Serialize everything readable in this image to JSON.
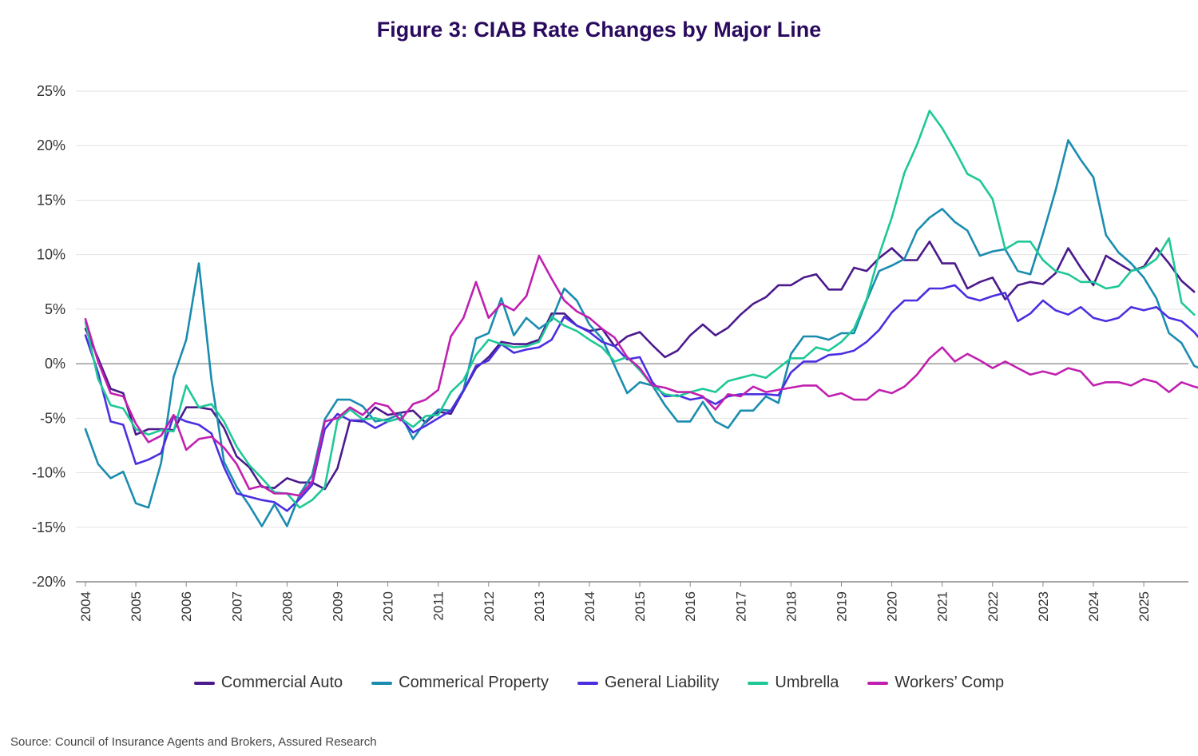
{
  "title": "Figure 3: CIAB Rate Changes by Major Line",
  "source": "Source: Council of Insurance Agents and Brokers, Assured Research",
  "chart_data": {
    "type": "line",
    "title": "Figure 3: CIAB Rate Changes by Major Line",
    "xlabel": "",
    "ylabel": "",
    "ylim": [
      -20,
      25
    ],
    "y_ticks": [
      "25%",
      "20%",
      "15%",
      "10%",
      "5%",
      "0%",
      "-5%",
      "-10%",
      "-15%",
      "-20%"
    ],
    "x_ticks": [
      "2004",
      "2005",
      "2006",
      "2007",
      "2008",
      "2009",
      "2010",
      "2011",
      "2012",
      "2013",
      "2014",
      "2015",
      "2016",
      "2017",
      "2018",
      "2019",
      "2020",
      "2021",
      "2022",
      "2023",
      "2024",
      "2025"
    ],
    "grid": "horizontal",
    "legend": "bottom",
    "x_start": 2004.0,
    "x_step": 0.25,
    "series": [
      {
        "name": "Commercial Auto",
        "color": "#4b1a8c",
        "values": [
          3.2,
          0.5,
          -2.3,
          -2.7,
          -6.5,
          -6.0,
          -6.0,
          -6.1,
          -4.0,
          -4.0,
          -4.2,
          -5.9,
          -8.5,
          -9.5,
          -11.3,
          -11.4,
          -10.5,
          -10.9,
          -10.9,
          -11.5,
          -9.6,
          -5.2,
          -5.3,
          -4.0,
          -4.7,
          -4.5,
          -4.3,
          -5.4,
          -4.4,
          -4.6,
          -2.5,
          -0.4,
          0.6,
          2.0,
          1.8,
          1.8,
          2.2,
          4.6,
          4.6,
          3.5,
          3.0,
          3.2,
          1.6,
          2.5,
          2.9,
          1.7,
          0.6,
          1.2,
          2.6,
          3.6,
          2.6,
          3.3,
          4.5,
          5.5,
          6.1,
          7.2,
          7.2,
          7.9,
          8.2,
          6.8,
          6.8,
          8.8,
          8.5,
          9.7,
          10.6,
          9.5,
          9.5,
          11.2,
          9.2,
          9.2,
          6.9,
          7.5,
          7.9,
          5.9,
          7.2,
          7.5,
          7.3,
          8.3,
          10.6,
          8.8,
          7.2,
          9.9,
          9.2,
          8.5,
          8.9,
          10.6,
          9.2,
          7.6,
          6.6
        ]
      },
      {
        "name": "Commerical Property",
        "color": "#1a8cb0",
        "values": [
          -6.0,
          -9.2,
          -10.5,
          -9.9,
          -12.8,
          -13.2,
          -9.1,
          -1.2,
          2.2,
          9.2,
          -1.5,
          -9.0,
          -11.3,
          -13.0,
          -14.9,
          -12.9,
          -14.9,
          -12.0,
          -10.2,
          -5.1,
          -3.3,
          -3.3,
          -3.9,
          -5.3,
          -5.1,
          -4.6,
          -6.9,
          -5.3,
          -4.2,
          -4.3,
          -2.4,
          2.3,
          2.8,
          6.0,
          2.6,
          4.2,
          3.2,
          4.0,
          6.9,
          5.8,
          3.6,
          2.3,
          -0.2,
          -2.7,
          -1.7,
          -2.0,
          -3.8,
          -5.3,
          -5.3,
          -3.5,
          -5.3,
          -5.9,
          -4.3,
          -4.3,
          -3.0,
          -3.6,
          0.9,
          2.5,
          2.5,
          2.2,
          2.8,
          2.8,
          5.8,
          8.5,
          9.0,
          9.6,
          12.2,
          13.4,
          14.2,
          13.0,
          12.2,
          9.9,
          10.3,
          10.5,
          8.5,
          8.2,
          11.9,
          15.9,
          20.5,
          18.7,
          17.1,
          11.8,
          10.2,
          9.2,
          7.9,
          6.0,
          2.8,
          1.9,
          -0.2,
          -0.7
        ]
      },
      {
        "name": "General Liability",
        "color": "#4a2fe0",
        "values": [
          2.6,
          -0.8,
          -5.3,
          -5.6,
          -9.2,
          -8.8,
          -8.2,
          -4.8,
          -5.3,
          -5.6,
          -6.4,
          -9.5,
          -11.9,
          -12.2,
          -12.5,
          -12.7,
          -13.5,
          -12.4,
          -11.1,
          -6.0,
          -4.6,
          -5.2,
          -5.2,
          -5.9,
          -5.3,
          -5.0,
          -6.3,
          -5.7,
          -5.0,
          -4.3,
          -2.5,
          -0.2,
          0.3,
          1.8,
          1.0,
          1.3,
          1.5,
          2.2,
          4.3,
          3.5,
          2.9,
          2.0,
          1.6,
          0.4,
          0.6,
          -1.7,
          -3.0,
          -2.9,
          -3.3,
          -3.1,
          -3.7,
          -3.0,
          -2.8,
          -2.8,
          -2.8,
          -2.9,
          -0.8,
          0.2,
          0.2,
          0.8,
          0.9,
          1.2,
          2.0,
          3.1,
          4.7,
          5.8,
          5.8,
          6.9,
          6.9,
          7.2,
          6.1,
          5.8,
          6.2,
          6.5,
          3.9,
          4.6,
          5.8,
          4.9,
          4.5,
          5.2,
          4.2,
          3.9,
          4.2,
          5.2,
          4.9,
          5.2,
          4.2,
          3.9,
          2.9,
          1.5
        ]
      },
      {
        "name": "Umbrella",
        "color": "#1ec896",
        "values": [
          3.8,
          -1.4,
          -3.8,
          -4.1,
          -6.0,
          -6.5,
          -6.1,
          -6.2,
          -2.0,
          -4.0,
          -3.7,
          -5.3,
          -7.6,
          -9.3,
          -10.5,
          -11.8,
          -11.9,
          -13.2,
          -12.5,
          -11.3,
          -5.2,
          -4.2,
          -5.1,
          -5.0,
          -5.3,
          -5.0,
          -5.8,
          -4.8,
          -4.7,
          -2.6,
          -1.5,
          0.8,
          2.2,
          1.8,
          1.5,
          1.6,
          2.0,
          4.3,
          3.5,
          3.0,
          2.2,
          1.5,
          0.2,
          0.6,
          -0.6,
          -2.0,
          -2.8,
          -3.0,
          -2.6,
          -2.3,
          -2.6,
          -1.6,
          -1.3,
          -1.0,
          -1.3,
          -0.4,
          0.5,
          0.5,
          1.5,
          1.2,
          2.0,
          3.2,
          5.9,
          10.0,
          13.4,
          17.5,
          20.1,
          23.2,
          21.6,
          19.6,
          17.4,
          16.8,
          15.1,
          10.5,
          11.2,
          11.2,
          9.5,
          8.5,
          8.2,
          7.5,
          7.5,
          6.9,
          7.1,
          8.5,
          8.8,
          9.6,
          11.5,
          5.6,
          4.5
        ]
      },
      {
        "name": "Workers’ Comp",
        "color": "#c020b0",
        "values": [
          4.1,
          0.2,
          -2.7,
          -3.0,
          -5.5,
          -7.2,
          -6.6,
          -4.7,
          -7.9,
          -6.9,
          -6.7,
          -7.7,
          -9.2,
          -11.5,
          -11.2,
          -11.9,
          -11.9,
          -12.1,
          -10.8,
          -5.3,
          -5.0,
          -4.0,
          -4.7,
          -3.6,
          -3.9,
          -5.2,
          -3.7,
          -3.3,
          -2.4,
          2.5,
          4.2,
          7.5,
          4.2,
          5.5,
          4.9,
          6.2,
          9.9,
          7.8,
          5.8,
          4.8,
          4.2,
          3.2,
          2.4,
          0.6,
          -0.4,
          -2.0,
          -2.2,
          -2.6,
          -2.6,
          -3.0,
          -4.2,
          -2.8,
          -3.0,
          -2.1,
          -2.6,
          -2.4,
          -2.2,
          -2.0,
          -2.0,
          -3.0,
          -2.7,
          -3.3,
          -3.3,
          -2.4,
          -2.7,
          -2.1,
          -1.0,
          0.5,
          1.5,
          0.2,
          0.9,
          0.3,
          -0.4,
          0.2,
          -0.4,
          -1.0,
          -0.7,
          -1.0,
          -0.4,
          -0.7,
          -2.0,
          -1.7,
          -1.7,
          -2.0,
          -1.4,
          -1.7,
          -2.6,
          -1.7,
          -2.1,
          -2.4
        ]
      }
    ]
  }
}
